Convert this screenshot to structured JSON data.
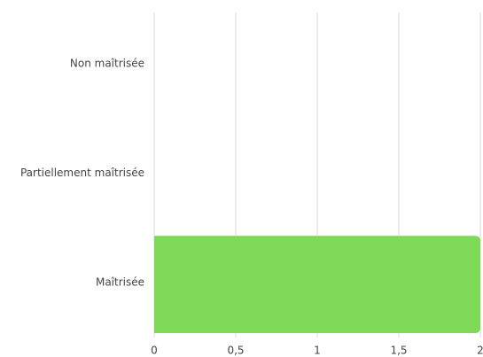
{
  "chart_data": {
    "type": "hbar",
    "categories": [
      "Non maîtrisée",
      "Partiellement maîtrisée",
      "Maîtrisée"
    ],
    "values": [
      0,
      0,
      2
    ],
    "color": "#7ed957",
    "xlim": [
      0,
      2
    ],
    "xticks": [
      0,
      {
        "value": 0.5,
        "label": "0,5"
      },
      1,
      {
        "value": 1.5,
        "label": "1,5"
      },
      2
    ],
    "grid": true
  }
}
